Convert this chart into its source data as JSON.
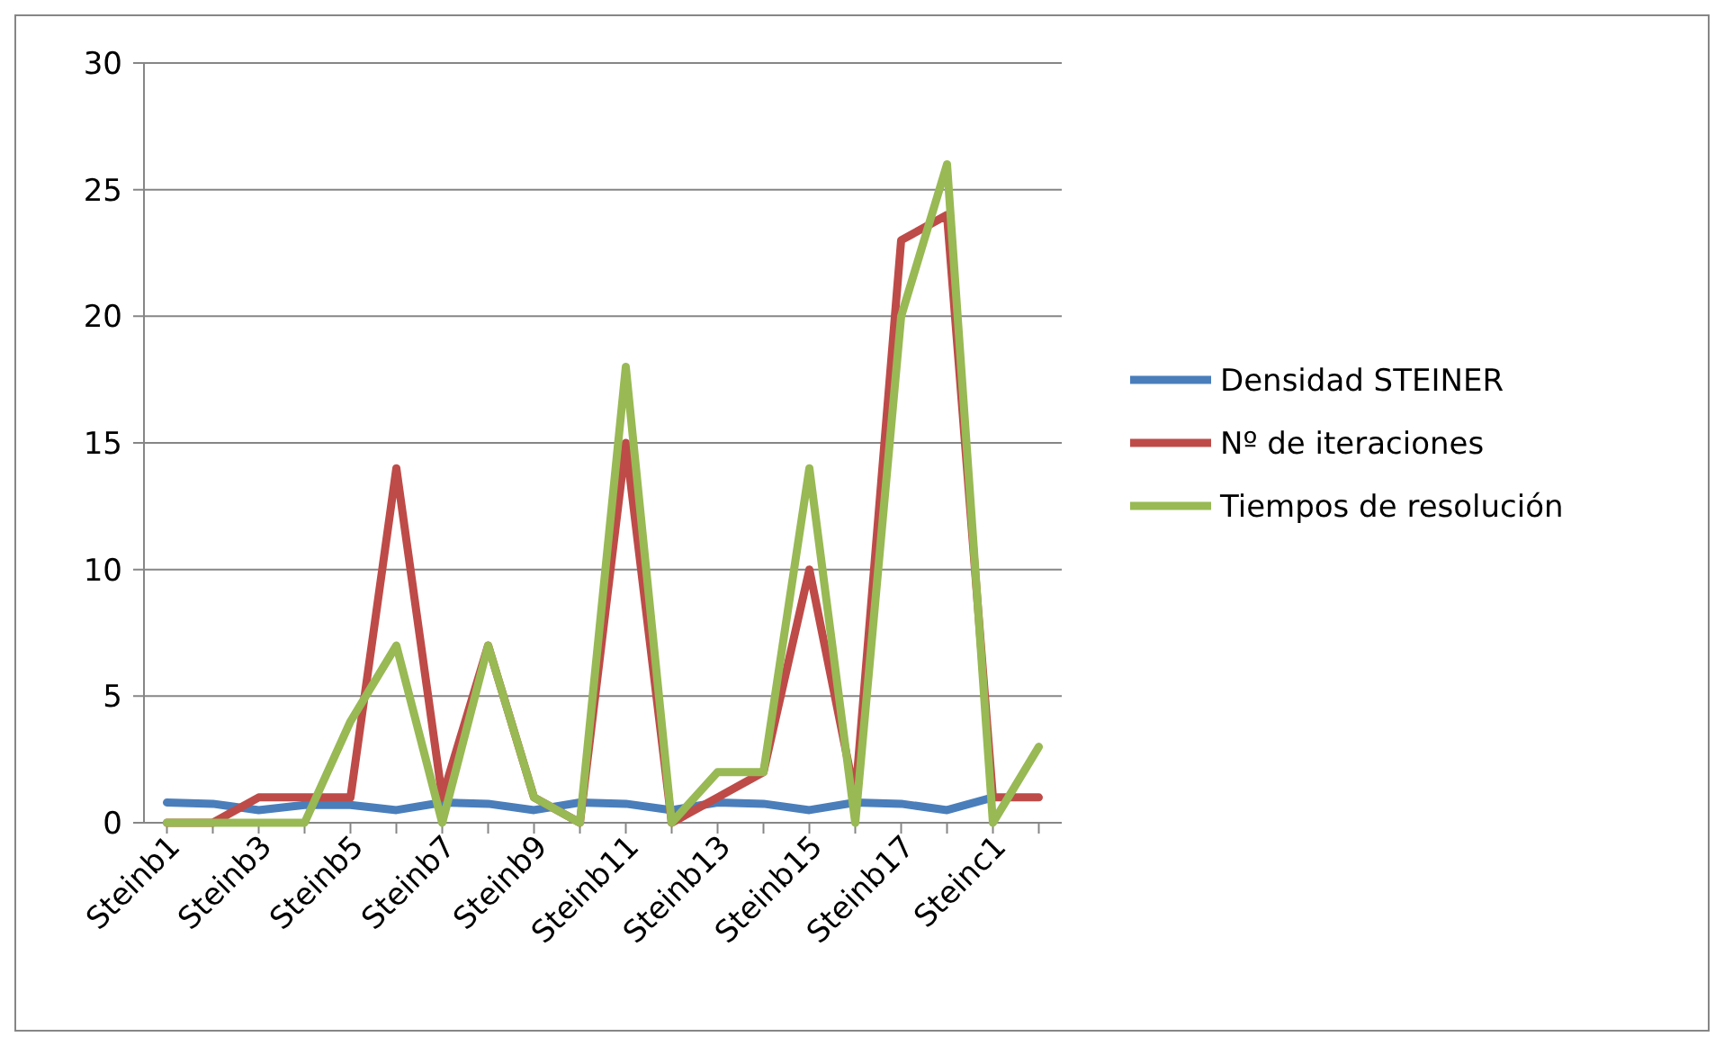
{
  "chart_data": {
    "type": "line",
    "categories": [
      "Steinb1",
      null,
      "Steinb3",
      null,
      "Steinb5",
      null,
      "Steinb7",
      null,
      "Steinb9",
      null,
      "Steinb11",
      null,
      "Steinb13",
      null,
      "Steinb15",
      null,
      "Steinb17",
      null,
      "Steinc1",
      null
    ],
    "series": [
      {
        "name": "Densidad STEINER",
        "color": "#4a7ebb",
        "values": [
          0.8,
          0.75,
          0.5,
          0.7,
          0.7,
          0.5,
          0.8,
          0.75,
          0.5,
          0.8,
          0.75,
          0.5,
          0.8,
          0.75,
          0.5,
          0.8,
          0.75,
          0.5,
          1,
          null
        ]
      },
      {
        "name": "Nº de iteraciones",
        "color": "#be4b48",
        "values": [
          0,
          0,
          1,
          1,
          1,
          14,
          1,
          7,
          1,
          0,
          15,
          0,
          1,
          2,
          10,
          1,
          23,
          24,
          1,
          1
        ]
      },
      {
        "name": "Tiempos de resolución",
        "color": "#98b954",
        "values": [
          0,
          0,
          0,
          0,
          4,
          7,
          0,
          7,
          1,
          0,
          18,
          0,
          2,
          2,
          14,
          0,
          20,
          26,
          0,
          3
        ]
      }
    ],
    "ylim": [
      0,
      30
    ],
    "yticks": [
      0,
      5,
      10,
      15,
      20,
      25,
      30
    ],
    "grid": "y",
    "legend": "right",
    "marker": "none",
    "line_style": "solid"
  }
}
